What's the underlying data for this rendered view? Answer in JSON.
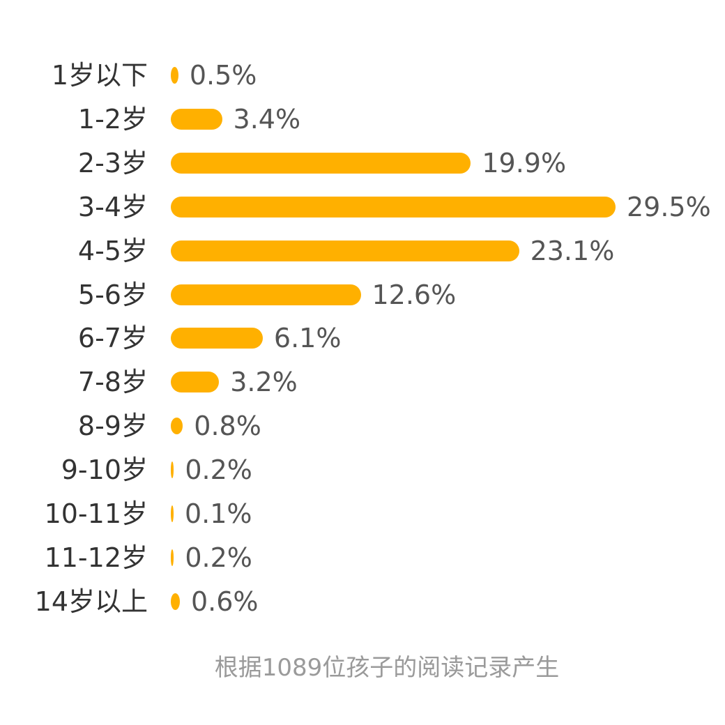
{
  "chart_data": {
    "type": "bar",
    "orientation": "horizontal",
    "categories": [
      "1岁以下",
      "1-2岁",
      "2-3岁",
      "3-4岁",
      "4-5岁",
      "5-6岁",
      "6-7岁",
      "7-8岁",
      "8-9岁",
      "9-10岁",
      "10-11岁",
      "11-12岁",
      "14岁以上"
    ],
    "values": [
      0.5,
      3.4,
      19.9,
      29.5,
      23.1,
      12.6,
      6.1,
      3.2,
      0.8,
      0.2,
      0.1,
      0.2,
      0.6
    ],
    "value_labels": [
      "0.5%",
      "3.4%",
      "19.9%",
      "29.5%",
      "23.1%",
      "12.6%",
      "6.1%",
      "3.2%",
      "0.8%",
      "0.2%",
      "0.1%",
      "0.2%",
      "0.6%"
    ],
    "xlim": [
      0,
      29.5
    ],
    "grid": false,
    "legend": "none",
    "bar_color": "#FFB000",
    "footnote": "根据1089位孩子的阅读记录产生"
  }
}
